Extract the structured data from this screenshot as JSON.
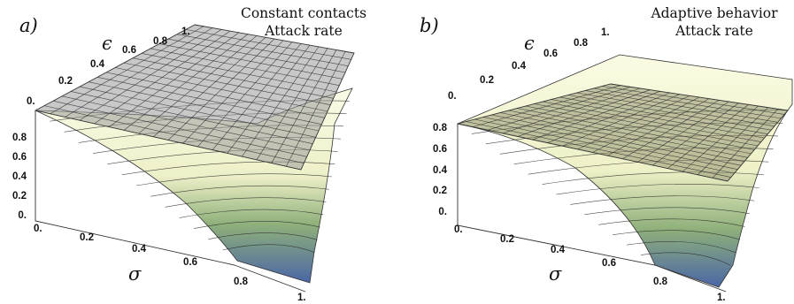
{
  "chart_data": [
    {
      "type": "surface3d",
      "panel_label": "a)",
      "title_lines": [
        "Constant contacts",
        "Attack rate"
      ],
      "x_axis": {
        "symbol": "σ",
        "range": [
          0,
          1
        ],
        "ticks": [
          "0.",
          "0.2",
          "0.4",
          "0.6",
          "0.8",
          "1."
        ]
      },
      "y_axis": {
        "symbol": "ϵ",
        "range": [
          0,
          1
        ],
        "ticks": [
          "0.",
          "0.2",
          "0.4",
          "0.6",
          "0.8",
          "1."
        ]
      },
      "z_axis": {
        "range": [
          0,
          0.9
        ],
        "ticks": [
          "0.",
          "0.2",
          "0.4",
          "0.6",
          "0.8"
        ]
      },
      "surfaces": [
        {
          "name": "",
          "style": "gradient",
          "description_values": {
            "z_at_sigma0": 0.89,
            "z_at_sigma1_eps0": 0.0,
            "z_at_sigma1_eps1": 0.45
          }
        },
        {
          "name": "",
          "style": "translucent-gray",
          "description_values": {
            "z_at_sigma0": 0.89,
            "z_at_sigma1": 0.5
          }
        }
      ]
    },
    {
      "type": "surface3d",
      "panel_label": "b)",
      "title_lines": [
        "Adaptive behavior",
        "Attack rate"
      ],
      "x_axis": {
        "symbol": "σ",
        "range": [
          0,
          1
        ],
        "ticks": [
          "0.",
          "0.2",
          "0.4",
          "0.6",
          "0.8",
          "1."
        ]
      },
      "y_axis": {
        "symbol": "ϵ",
        "range": [
          0,
          1
        ],
        "ticks": [
          "0.",
          "0.2",
          "0.4",
          "0.6",
          "0.8",
          "1."
        ]
      },
      "z_axis": {
        "range": [
          0,
          0.9
        ],
        "ticks": [
          "0.",
          "0.2",
          "0.4",
          "0.6",
          "0.8"
        ]
      },
      "surfaces": [
        {
          "name": "",
          "style": "gradient",
          "description_values": {
            "z_at_sigma0": 0.83,
            "z_at_sigma1_eps0": 0.0,
            "z_at_sigma1_eps1": 0.9
          }
        },
        {
          "name": "",
          "style": "translucent-olive",
          "description_values": {
            "z_at_sigma0": 0.83,
            "z_at_sigma1": 0.55
          }
        }
      ]
    }
  ]
}
